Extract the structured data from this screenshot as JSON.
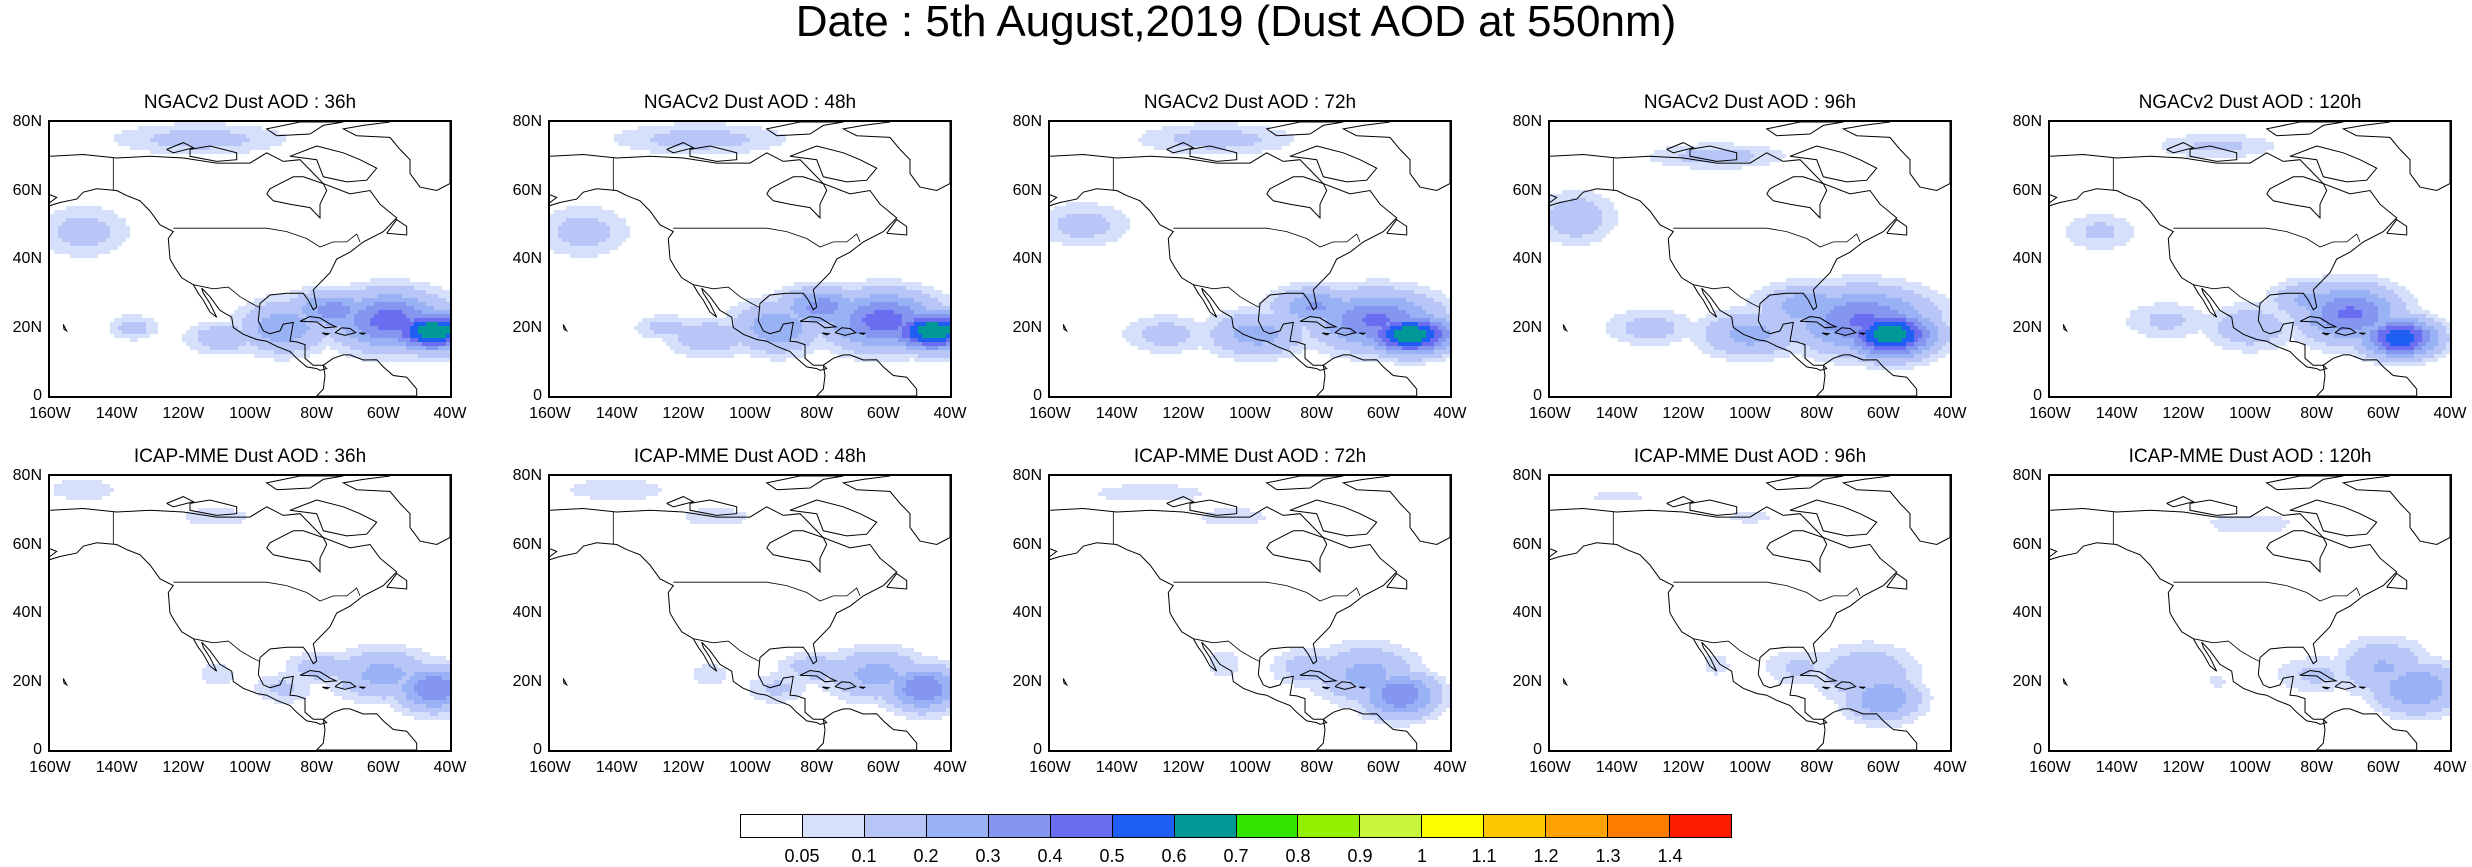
{
  "title": "Date : 5th August,2019 (Dust AOD at 550nm)",
  "lat_labels": [
    "80N",
    "60N",
    "40N",
    "20N",
    "0"
  ],
  "lon_labels": [
    "160W",
    "140W",
    "120W",
    "100W",
    "80W",
    "60W",
    "40W"
  ],
  "map_extent": {
    "lon": [
      -160,
      -40
    ],
    "lat": [
      0,
      80
    ]
  },
  "panels": [
    {
      "title": "NGACv2 Dust AOD : 36h",
      "max_aod": 0.7
    },
    {
      "title": "NGACv2 Dust AOD : 48h",
      "max_aod": 0.7
    },
    {
      "title": "NGACv2 Dust AOD : 72h",
      "max_aod": 0.7
    },
    {
      "title": "NGACv2 Dust AOD : 96h",
      "max_aod": 0.7
    },
    {
      "title": "NGACv2 Dust AOD : 120h",
      "max_aod": 0.6
    },
    {
      "title": "ICAP-MME Dust AOD : 36h",
      "max_aod": 0.4
    },
    {
      "title": "ICAP-MME Dust AOD : 48h",
      "max_aod": 0.4
    },
    {
      "title": "ICAP-MME Dust AOD : 72h",
      "max_aod": 0.4
    },
    {
      "title": "ICAP-MME Dust AOD : 96h",
      "max_aod": 0.3
    },
    {
      "title": "ICAP-MME Dust AOD : 120h",
      "max_aod": 0.3
    }
  ],
  "colorbar": {
    "labels": [
      "0.05",
      "0.1",
      "0.2",
      "0.3",
      "0.4",
      "0.5",
      "0.6",
      "0.7",
      "0.8",
      "0.9",
      "1",
      "1.1",
      "1.2",
      "1.3",
      "1.4"
    ],
    "colors": [
      "#ffffff",
      "#d6e0fb",
      "#b7c6f7",
      "#99b1f5",
      "#8596f0",
      "#6b6df0",
      "#1e5ef2",
      "#009896",
      "#33e600",
      "#93f000",
      "#c9f53c",
      "#fdfd00",
      "#fdc700",
      "#fda200",
      "#fc7d00",
      "#fc1c00"
    ]
  }
}
